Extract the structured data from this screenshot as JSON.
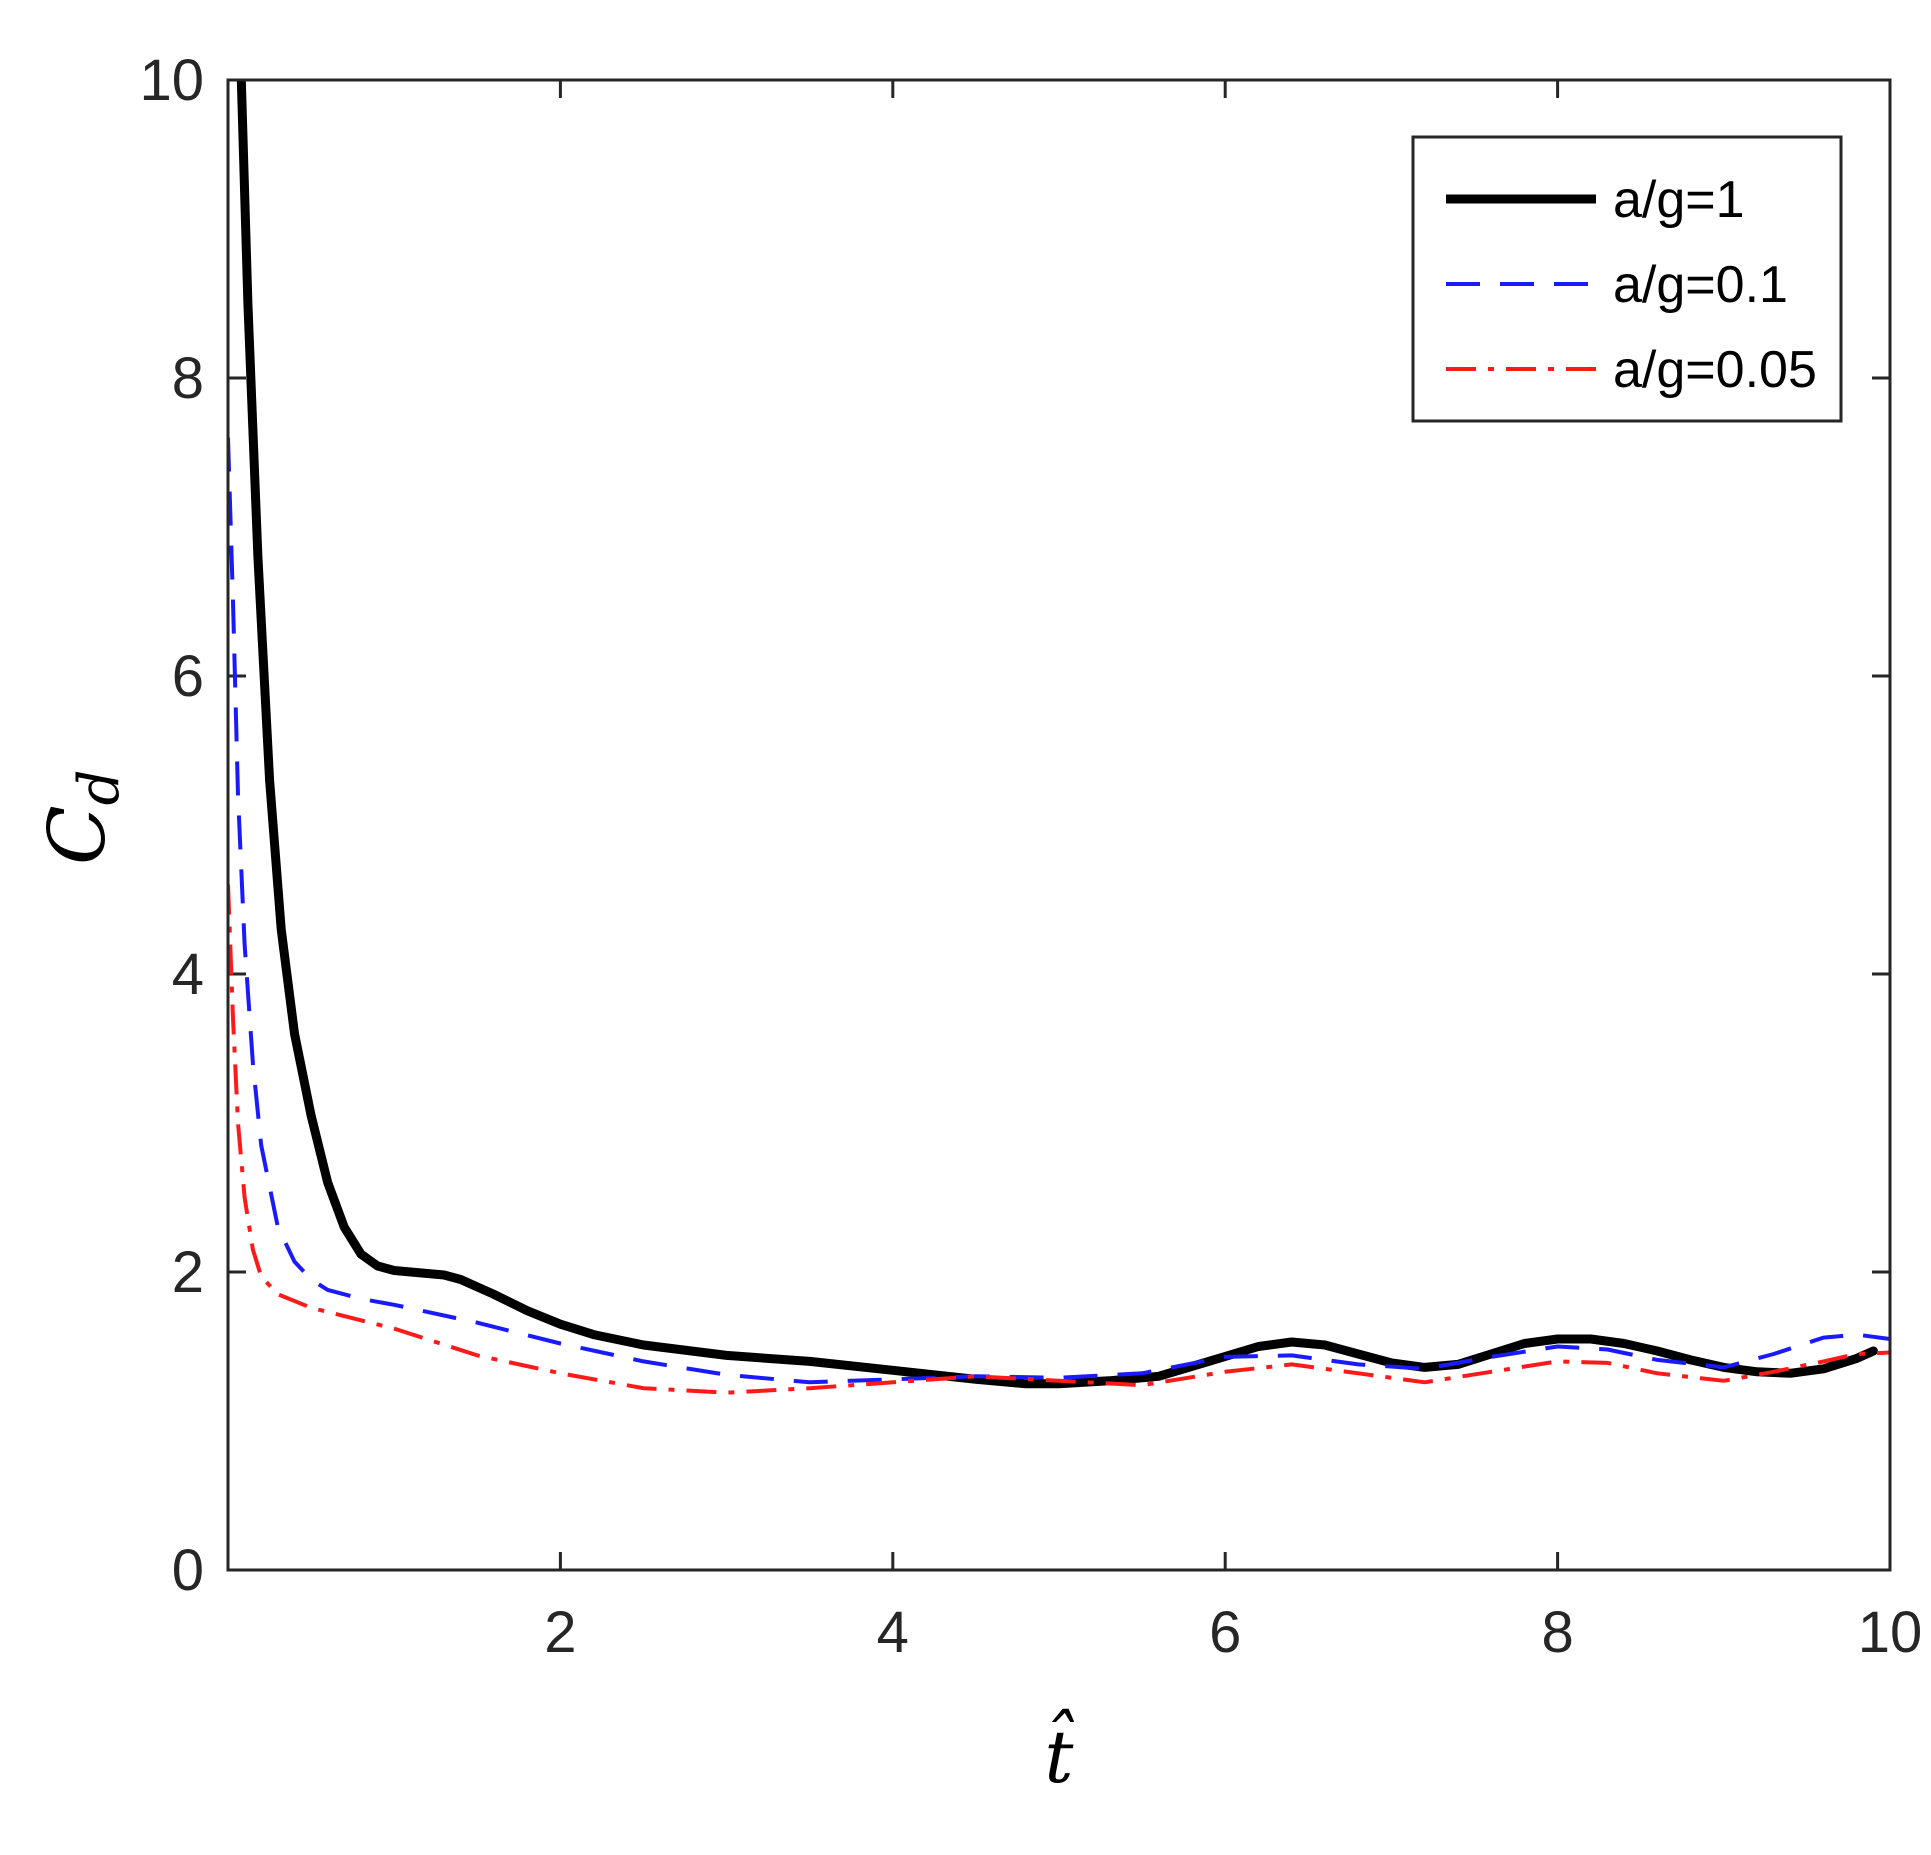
{
  "chart_data": {
    "type": "line",
    "xlabel": "t̂",
    "ylabel_main": "C",
    "ylabel_sub": "d",
    "xlim": [
      0,
      10
    ],
    "ylim": [
      0,
      10
    ],
    "xticks": [
      2,
      4,
      6,
      8,
      10
    ],
    "yticks": [
      0,
      2,
      4,
      6,
      8,
      10
    ],
    "grid": false,
    "legend_position": "top-right",
    "series": [
      {
        "name": "a/g=1",
        "color": "#000000",
        "style": "solid",
        "points": [
          [
            0.08,
            10
          ],
          [
            0.12,
            8.5
          ],
          [
            0.18,
            6.8
          ],
          [
            0.25,
            5.3
          ],
          [
            0.32,
            4.3
          ],
          [
            0.4,
            3.6
          ],
          [
            0.5,
            3.05
          ],
          [
            0.6,
            2.6
          ],
          [
            0.7,
            2.3
          ],
          [
            0.8,
            2.12
          ],
          [
            0.9,
            2.04
          ],
          [
            1.0,
            2.01
          ],
          [
            1.1,
            2.0
          ],
          [
            1.2,
            1.99
          ],
          [
            1.3,
            1.98
          ],
          [
            1.4,
            1.95
          ],
          [
            1.6,
            1.85
          ],
          [
            1.8,
            1.74
          ],
          [
            2.0,
            1.65
          ],
          [
            2.2,
            1.58
          ],
          [
            2.5,
            1.51
          ],
          [
            3.0,
            1.44
          ],
          [
            3.5,
            1.4
          ],
          [
            4.0,
            1.34
          ],
          [
            4.5,
            1.28
          ],
          [
            4.8,
            1.25
          ],
          [
            5.0,
            1.25
          ],
          [
            5.3,
            1.27
          ],
          [
            5.6,
            1.3
          ],
          [
            5.9,
            1.4
          ],
          [
            6.2,
            1.5
          ],
          [
            6.4,
            1.53
          ],
          [
            6.6,
            1.51
          ],
          [
            6.8,
            1.45
          ],
          [
            7.0,
            1.39
          ],
          [
            7.2,
            1.36
          ],
          [
            7.4,
            1.38
          ],
          [
            7.6,
            1.45
          ],
          [
            7.8,
            1.52
          ],
          [
            8.0,
            1.55
          ],
          [
            8.2,
            1.55
          ],
          [
            8.4,
            1.52
          ],
          [
            8.6,
            1.47
          ],
          [
            8.8,
            1.41
          ],
          [
            9.0,
            1.36
          ],
          [
            9.2,
            1.33
          ],
          [
            9.4,
            1.32
          ],
          [
            9.6,
            1.35
          ],
          [
            9.8,
            1.42
          ],
          [
            9.9,
            1.47
          ]
        ]
      },
      {
        "name": "a/g=0.1",
        "color": "#1a1aff",
        "style": "dashed",
        "points": [
          [
            0.0,
            7.6
          ],
          [
            0.03,
            6.5
          ],
          [
            0.06,
            5.2
          ],
          [
            0.1,
            4.2
          ],
          [
            0.15,
            3.4
          ],
          [
            0.2,
            2.85
          ],
          [
            0.3,
            2.3
          ],
          [
            0.4,
            2.07
          ],
          [
            0.5,
            1.95
          ],
          [
            0.6,
            1.88
          ],
          [
            0.8,
            1.82
          ],
          [
            1.0,
            1.78
          ],
          [
            1.5,
            1.66
          ],
          [
            2.0,
            1.52
          ],
          [
            2.5,
            1.4
          ],
          [
            3.0,
            1.31
          ],
          [
            3.5,
            1.26
          ],
          [
            4.0,
            1.28
          ],
          [
            4.5,
            1.3
          ],
          [
            5.0,
            1.29
          ],
          [
            5.5,
            1.32
          ],
          [
            6.0,
            1.43
          ],
          [
            6.4,
            1.44
          ],
          [
            6.8,
            1.38
          ],
          [
            7.2,
            1.35
          ],
          [
            7.6,
            1.43
          ],
          [
            8.0,
            1.5
          ],
          [
            8.3,
            1.48
          ],
          [
            8.6,
            1.41
          ],
          [
            9.0,
            1.36
          ],
          [
            9.3,
            1.45
          ],
          [
            9.6,
            1.56
          ],
          [
            9.8,
            1.58
          ],
          [
            10.0,
            1.55
          ]
        ]
      },
      {
        "name": "a/g=0.05",
        "color": "#ff1a1a",
        "style": "dashdot",
        "points": [
          [
            0.0,
            4.6
          ],
          [
            0.03,
            3.7
          ],
          [
            0.06,
            3.0
          ],
          [
            0.1,
            2.5
          ],
          [
            0.15,
            2.15
          ],
          [
            0.2,
            1.97
          ],
          [
            0.3,
            1.85
          ],
          [
            0.5,
            1.76
          ],
          [
            1.0,
            1.62
          ],
          [
            1.5,
            1.44
          ],
          [
            2.0,
            1.32
          ],
          [
            2.5,
            1.22
          ],
          [
            3.0,
            1.19
          ],
          [
            3.5,
            1.22
          ],
          [
            4.0,
            1.26
          ],
          [
            4.5,
            1.3
          ],
          [
            5.0,
            1.27
          ],
          [
            5.5,
            1.24
          ],
          [
            6.0,
            1.33
          ],
          [
            6.4,
            1.38
          ],
          [
            6.8,
            1.32
          ],
          [
            7.2,
            1.26
          ],
          [
            7.6,
            1.33
          ],
          [
            8.0,
            1.4
          ],
          [
            8.3,
            1.39
          ],
          [
            8.6,
            1.32
          ],
          [
            9.0,
            1.27
          ],
          [
            9.3,
            1.33
          ],
          [
            9.6,
            1.4
          ],
          [
            9.8,
            1.45
          ],
          [
            10.0,
            1.46
          ]
        ]
      }
    ]
  }
}
